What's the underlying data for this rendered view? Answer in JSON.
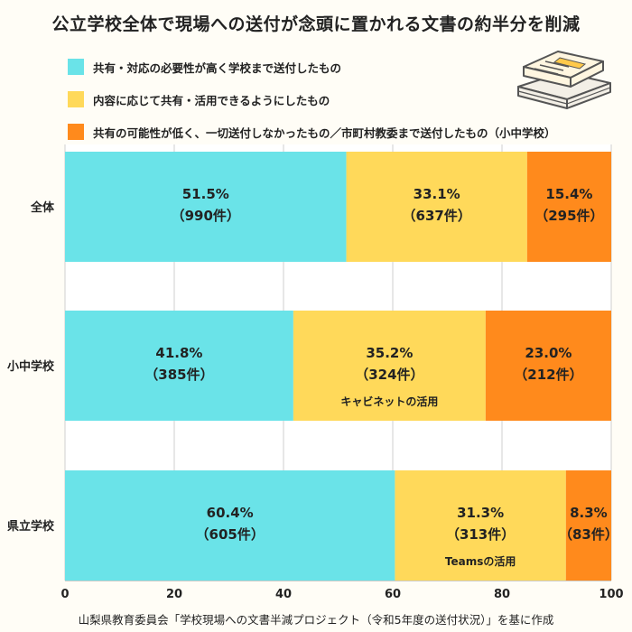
{
  "title": "公立学校全体で現場への送付が念頭に置かれる文書の約半分を削減",
  "legend": [
    {
      "label": "共有・対応の必要性が高く学校まで送付したもの",
      "color": "#6ae3e8"
    },
    {
      "label": "内容に応じて共有・活用できるようにしたもの",
      "color": "#ffd95a"
    },
    {
      "label": "共有の可能性が低く、一切送付しなかったもの／市町村教委まで送付したもの（小中学校）",
      "color": "#ff8a1c"
    }
  ],
  "footnote": "山梨県教育委員会「学校現場への文書半減プロジェクト（令和5年度の送付状況）」を基に作成",
  "chart_data": {
    "type": "bar",
    "orientation": "horizontal",
    "stacked": true,
    "categories": [
      "全体",
      "小中学校",
      "県立学校"
    ],
    "series": [
      {
        "name": "共有・対応の必要性が高く学校まで送付したもの",
        "color": "#6ae3e8",
        "values": [
          51.5,
          41.8,
          60.4
        ],
        "counts": [
          "990件",
          "385件",
          "605件"
        ]
      },
      {
        "name": "内容に応じて共有・活用できるようにしたもの",
        "color": "#ffd95a",
        "values": [
          33.1,
          35.2,
          31.3
        ],
        "counts": [
          "637件",
          "324件",
          "313件"
        ],
        "notes": [
          "",
          "キャビネットの活用",
          "Teamsの活用"
        ]
      },
      {
        "name": "共有の可能性が低く、一切送付しなかったもの／市町村教委まで送付したもの（小中学校）",
        "color": "#ff8a1c",
        "values": [
          15.4,
          23.0,
          8.3
        ],
        "counts": [
          "295件",
          "212件",
          "83件"
        ]
      }
    ],
    "xlim": [
      0,
      100
    ],
    "xticks": [
      0,
      20,
      40,
      60,
      80,
      100
    ],
    "grid": true
  }
}
